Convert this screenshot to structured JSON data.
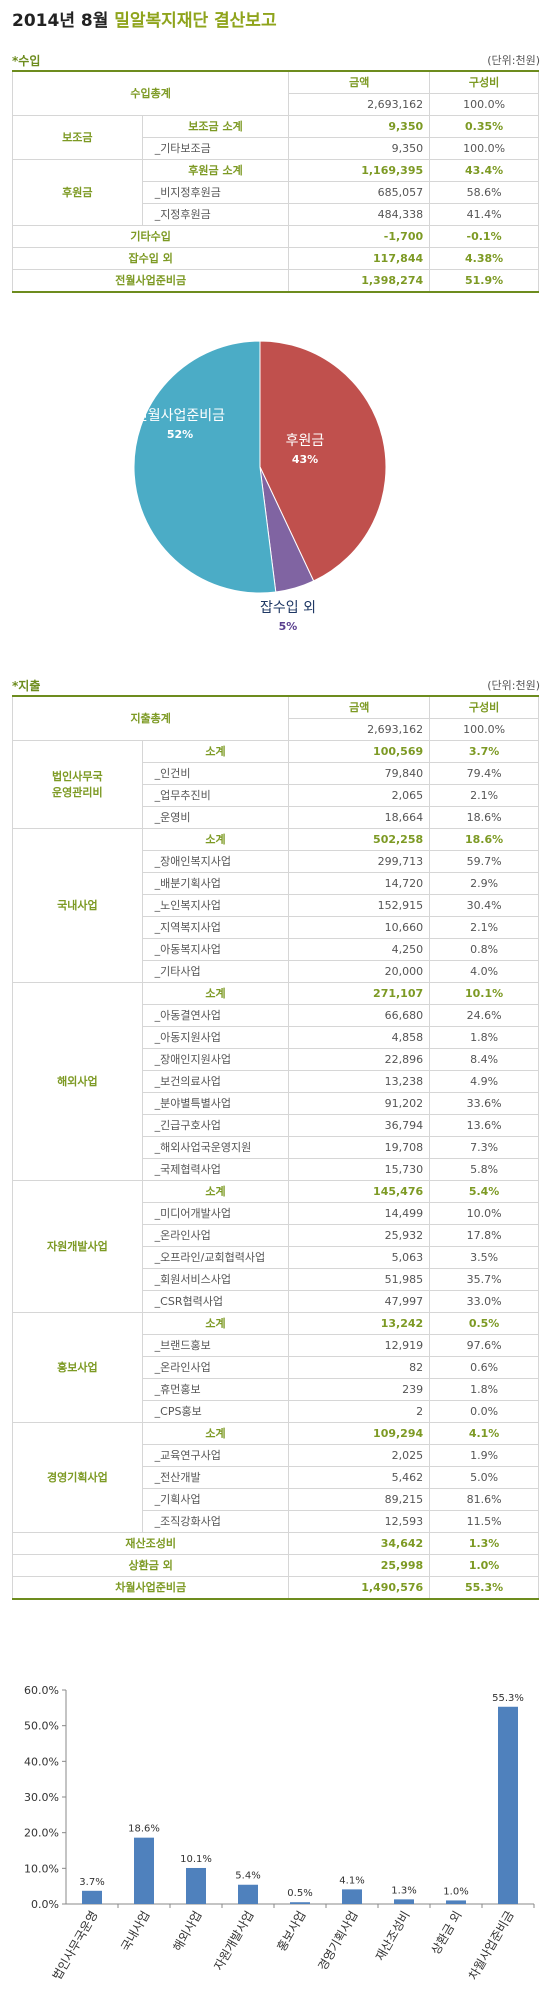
{
  "title": {
    "prefix": "2014년 8월",
    "name": "밀알복지재단 결산보고"
  },
  "income": {
    "label": "*수입",
    "unit": "(단위:천원)",
    "header": {
      "label": "수입총계",
      "amount_label": "금액",
      "ratio_label": "구성비",
      "amount": "2,693,162",
      "ratio": "100.0%"
    },
    "rows": [
      {
        "group": "보조금",
        "span": 2,
        "label": "보조금 소계",
        "amount": "9,350",
        "ratio": "0.35%",
        "sub": true
      },
      {
        "label": "_기타보조금",
        "amount": "9,350",
        "ratio": "100.0%"
      },
      {
        "group": "후원금",
        "span": 3,
        "label": "후원금 소계",
        "amount": "1,169,395",
        "ratio": "43.4%",
        "sub": true
      },
      {
        "label": "_비지정후원금",
        "amount": "685,057",
        "ratio": "58.6%"
      },
      {
        "label": "_지정후원금",
        "amount": "484,338",
        "ratio": "41.4%"
      },
      {
        "summary": "기타수입",
        "amount": "-1,700",
        "ratio": "-0.1%"
      },
      {
        "summary": "잡수입 외",
        "amount": "117,844",
        "ratio": "4.38%"
      },
      {
        "summary": "전월사업준비금",
        "amount": "1,398,274",
        "ratio": "51.9%"
      }
    ]
  },
  "chart_data": [
    {
      "type": "pie",
      "slices": [
        {
          "label": "후원금",
          "value": 43,
          "pct_label": "43%",
          "color": "#c0504d"
        },
        {
          "label": "잡수입 외",
          "value": 5,
          "pct_label": "5%",
          "color": "#8064a2"
        },
        {
          "label": "전월사업준비금",
          "value": 52,
          "pct_label": "52%",
          "color": "#4bacc6"
        }
      ]
    },
    {
      "type": "bar",
      "categories": [
        "법인사무국운영",
        "국내사업",
        "해외사업",
        "자원개발사업",
        "홍보사업",
        "경영기획사업",
        "재산조성비",
        "상환금 외",
        "차월사업준비금"
      ],
      "values": [
        3.7,
        18.6,
        10.1,
        5.4,
        0.5,
        4.1,
        1.3,
        1.0,
        55.3
      ],
      "data_labels": [
        "3.7%",
        "18.6%",
        "10.1%",
        "5.4%",
        "0.5%",
        "4.1%",
        "1.3%",
        "1.0%",
        "55.3%"
      ],
      "yticks": [
        "0.0%",
        "10.0%",
        "20.0%",
        "30.0%",
        "40.0%",
        "50.0%",
        "60.0%"
      ],
      "ylim": [
        0,
        60
      ],
      "grid": false,
      "bar_color": "#4f81bd"
    }
  ],
  "expense": {
    "label": "*지출",
    "unit": "(단위:천원)",
    "header": {
      "label": "지출총계",
      "amount_label": "금액",
      "ratio_label": "구성비",
      "amount": "2,693,162",
      "ratio": "100.0%"
    },
    "rows": [
      {
        "group": "법인사무국\n운영관리비",
        "span": 4,
        "label": "소계",
        "amount": "100,569",
        "ratio": "3.7%",
        "sub": true
      },
      {
        "label": "_인건비",
        "amount": "79,840",
        "ratio": "79.4%"
      },
      {
        "label": "_업무추진비",
        "amount": "2,065",
        "ratio": "2.1%"
      },
      {
        "label": "_운영비",
        "amount": "18,664",
        "ratio": "18.6%"
      },
      {
        "group": "국내사업",
        "span": 7,
        "label": "소계",
        "amount": "502,258",
        "ratio": "18.6%",
        "sub": true
      },
      {
        "label": "_장애인복지사업",
        "amount": "299,713",
        "ratio": "59.7%"
      },
      {
        "label": "_배분기획사업",
        "amount": "14,720",
        "ratio": "2.9%"
      },
      {
        "label": "_노인복지사업",
        "amount": "152,915",
        "ratio": "30.4%"
      },
      {
        "label": "_지역복지사업",
        "amount": "10,660",
        "ratio": "2.1%"
      },
      {
        "label": "_아동복지사업",
        "amount": "4,250",
        "ratio": "0.8%"
      },
      {
        "label": "_기타사업",
        "amount": "20,000",
        "ratio": "4.0%"
      },
      {
        "group": "해외사업",
        "span": 9,
        "label": "소계",
        "amount": "271,107",
        "ratio": "10.1%",
        "sub": true
      },
      {
        "label": "_아동결연사업",
        "amount": "66,680",
        "ratio": "24.6%"
      },
      {
        "label": "_아동지원사업",
        "amount": "4,858",
        "ratio": "1.8%"
      },
      {
        "label": "_장애인지원사업",
        "amount": "22,896",
        "ratio": "8.4%"
      },
      {
        "label": "_보건의료사업",
        "amount": "13,238",
        "ratio": "4.9%"
      },
      {
        "label": "_분야별특별사업",
        "amount": "91,202",
        "ratio": "33.6%"
      },
      {
        "label": "_긴급구호사업",
        "amount": "36,794",
        "ratio": "13.6%"
      },
      {
        "label": "_해외사업국운영지원",
        "amount": "19,708",
        "ratio": "7.3%"
      },
      {
        "label": "_국제협력사업",
        "amount": "15,730",
        "ratio": "5.8%"
      },
      {
        "group": "자원개발사업",
        "span": 6,
        "label": "소계",
        "amount": "145,476",
        "ratio": "5.4%",
        "sub": true
      },
      {
        "label": "_미디어개발사업",
        "amount": "14,499",
        "ratio": "10.0%"
      },
      {
        "label": "_온라인사업",
        "amount": "25,932",
        "ratio": "17.8%"
      },
      {
        "label": "_오프라인/교회협력사업",
        "amount": "5,063",
        "ratio": "3.5%"
      },
      {
        "label": "_회원서비스사업",
        "amount": "51,985",
        "ratio": "35.7%"
      },
      {
        "label": "_CSR협력사업",
        "amount": "47,997",
        "ratio": "33.0%"
      },
      {
        "group": "홍보사업",
        "span": 5,
        "label": "소계",
        "amount": "13,242",
        "ratio": "0.5%",
        "sub": true
      },
      {
        "label": "_브랜드홍보",
        "amount": "12,919",
        "ratio": "97.6%"
      },
      {
        "label": "_온라인사업",
        "amount": "82",
        "ratio": "0.6%"
      },
      {
        "label": "_휴먼홍보",
        "amount": "239",
        "ratio": "1.8%"
      },
      {
        "label": "_CPS홍보",
        "amount": "2",
        "ratio": "0.0%"
      },
      {
        "group": "경영기획사업",
        "span": 5,
        "label": "소계",
        "amount": "109,294",
        "ratio": "4.1%",
        "sub": true
      },
      {
        "label": "_교육연구사업",
        "amount": "2,025",
        "ratio": "1.9%"
      },
      {
        "label": "_전산개발",
        "amount": "5,462",
        "ratio": "5.0%"
      },
      {
        "label": "_기획사업",
        "amount": "89,215",
        "ratio": "81.6%"
      },
      {
        "label": "_조직강화사업",
        "amount": "12,593",
        "ratio": "11.5%"
      },
      {
        "summary": "재산조성비",
        "amount": "34,642",
        "ratio": "1.3%"
      },
      {
        "summary": "상환금 외",
        "amount": "25,998",
        "ratio": "1.0%"
      },
      {
        "summary": "차월사업준비금",
        "amount": "1,490,576",
        "ratio": "55.3%"
      }
    ]
  }
}
